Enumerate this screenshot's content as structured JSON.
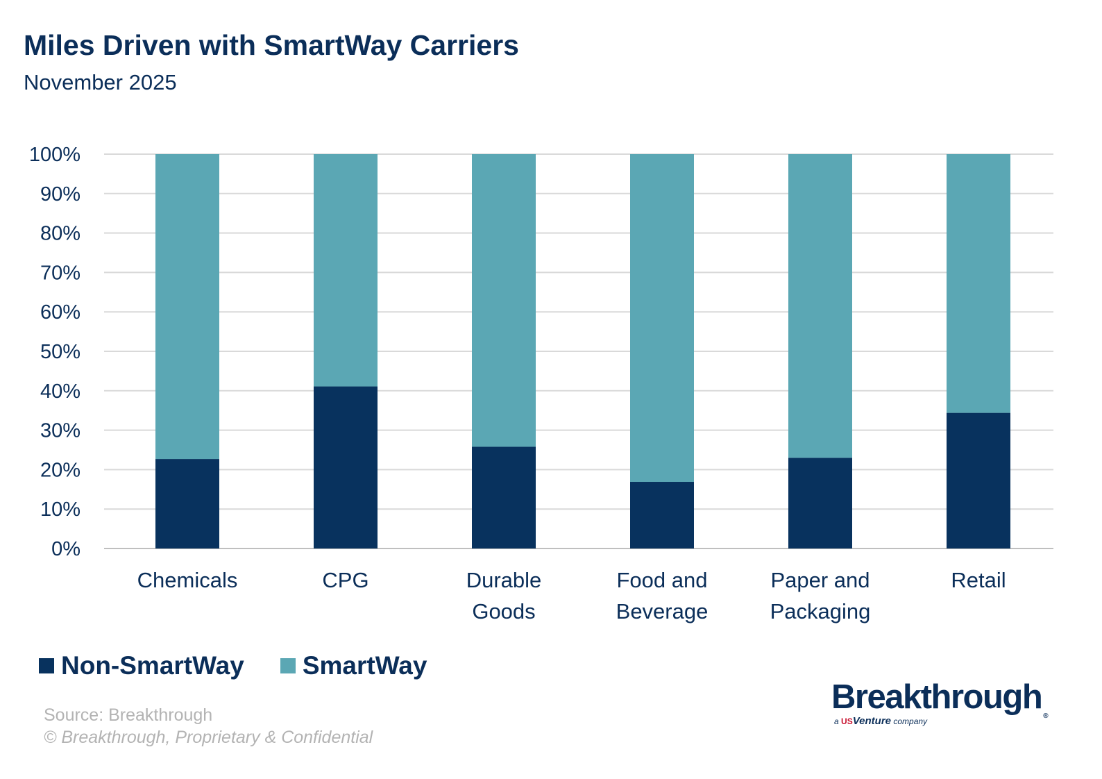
{
  "header": {
    "title": "Miles Driven with SmartWay Carriers",
    "subtitle": "November 2025"
  },
  "colors": {
    "non_smartway": "#08325e",
    "smartway": "#5ba7b4",
    "gridline": "#d9d9d9",
    "text": "#0b2e59"
  },
  "chart_data": {
    "type": "bar",
    "stacked": true,
    "title": "Miles Driven with SmartWay Carriers",
    "subtitle": "November 2025",
    "categories": [
      [
        "Chemicals"
      ],
      [
        "CPG"
      ],
      [
        "Durable",
        "Goods"
      ],
      [
        "Food and",
        "Beverage"
      ],
      [
        "Paper and",
        "Packaging"
      ],
      [
        "Retail"
      ]
    ],
    "series": [
      {
        "name": "Non-SmartWay",
        "values": [
          22.7,
          41.1,
          25.8,
          16.9,
          23.0,
          34.4
        ]
      },
      {
        "name": "SmartWay",
        "values": [
          77.3,
          58.9,
          74.2,
          83.1,
          77.0,
          65.6
        ]
      }
    ],
    "ylim": [
      0,
      100
    ],
    "yticks": [
      "0%",
      "10%",
      "20%",
      "30%",
      "40%",
      "50%",
      "60%",
      "70%",
      "80%",
      "90%",
      "100%"
    ],
    "grid": true,
    "legend": "bottom-left"
  },
  "legend": {
    "items": [
      {
        "label": "Non-SmartWay"
      },
      {
        "label": "SmartWay"
      }
    ]
  },
  "footer": {
    "source": "Source: Breakthrough",
    "copyright": "© Breakthrough, Proprietary & Confidential"
  },
  "logo": {
    "name": "Breakthrough",
    "tag_prefix": "a",
    "tag_us": "US",
    "tag_venture": "Venture",
    "tag_suffix": "company"
  }
}
